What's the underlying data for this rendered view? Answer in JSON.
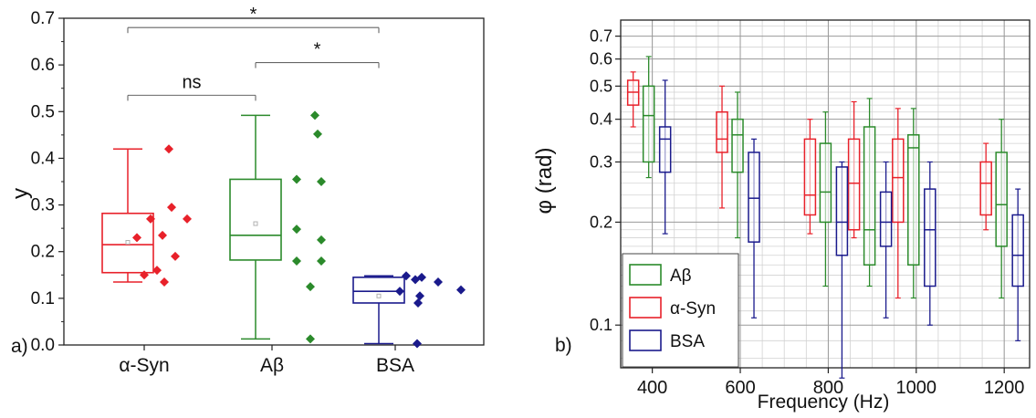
{
  "chart_data": [
    {
      "type": "box",
      "panel_label": "a)",
      "ylabel": "y",
      "ylim": [
        0,
        0.7
      ],
      "yticks": [
        "0.0",
        "0.1",
        "0.2",
        "0.3",
        "0.4",
        "0.5",
        "0.6",
        "0.7"
      ],
      "categories": [
        "α-Syn",
        "Aβ",
        "BSA"
      ],
      "colors": [
        "#e8212a",
        "#2b8a2b",
        "#1a1a8c"
      ],
      "boxes": [
        {
          "category": "α-Syn",
          "whisker_low": 0.135,
          "q1": 0.155,
          "median": 0.215,
          "q3": 0.282,
          "whisker_high": 0.42,
          "mean": 0.22
        },
        {
          "category": "Aβ",
          "whisker_low": 0.013,
          "q1": 0.182,
          "median": 0.235,
          "q3": 0.355,
          "whisker_high": 0.492,
          "mean": 0.26
        },
        {
          "category": "BSA",
          "whisker_low": 0.003,
          "q1": 0.09,
          "median": 0.115,
          "q3": 0.145,
          "whisker_high": 0.148,
          "mean": 0.105
        }
      ],
      "points": [
        {
          "category": "α-Syn",
          "values": [
            0.42,
            0.295,
            0.27,
            0.27,
            0.235,
            0.23,
            0.19,
            0.16,
            0.15,
            0.135
          ]
        },
        {
          "category": "Aβ",
          "values": [
            0.492,
            0.452,
            0.355,
            0.35,
            0.248,
            0.225,
            0.18,
            0.18,
            0.125,
            0.013
          ]
        },
        {
          "category": "BSA",
          "values": [
            0.148,
            0.145,
            0.14,
            0.135,
            0.115,
            0.118,
            0.105,
            0.09,
            0.003
          ]
        }
      ],
      "significance": [
        {
          "from": "α-Syn",
          "to": "Aβ",
          "label": "ns",
          "y": 0.535
        },
        {
          "from": "Aβ",
          "to": "BSA",
          "label": "*",
          "y": 0.605
        },
        {
          "from": "α-Syn",
          "to": "BSA",
          "label": "*",
          "y": 0.68
        }
      ]
    },
    {
      "type": "box",
      "panel_label": "b)",
      "xlabel": "Frequency (Hz)",
      "ylabel": "φ (rad)",
      "yscale": "log",
      "ylim": [
        0.075,
        0.78
      ],
      "yticks": [
        0.1,
        0.2,
        0.3,
        0.4,
        0.5,
        0.6,
        0.7
      ],
      "ytick_labels": [
        "0.1",
        "0.2",
        "0.3",
        "0.4",
        "0.5",
        "0.6",
        "0.7"
      ],
      "xticks": [
        400,
        600,
        800,
        1000,
        1200
      ],
      "xtick_labels": [
        "400",
        "600",
        "800",
        "1000",
        "1200"
      ],
      "frequencies": [
        380,
        600,
        800,
        900,
        1000,
        1200
      ],
      "legend": {
        "position": "bottom-left",
        "entries": [
          "Aβ",
          "α-Syn",
          "BSA"
        ]
      },
      "series": [
        {
          "name": "α-Syn",
          "color": "#e8212a",
          "boxes": [
            {
              "freq": 380,
              "whisker_low": 0.38,
              "q1": 0.44,
              "median": 0.48,
              "q3": 0.52,
              "whisker_high": 0.55
            },
            {
              "freq": 600,
              "whisker_low": 0.22,
              "q1": 0.32,
              "median": 0.35,
              "q3": 0.42,
              "whisker_high": 0.5
            },
            {
              "freq": 800,
              "whisker_low": 0.185,
              "q1": 0.21,
              "median": 0.24,
              "q3": 0.35,
              "whisker_high": 0.4
            },
            {
              "freq": 900,
              "whisker_low": 0.18,
              "q1": 0.19,
              "median": 0.26,
              "q3": 0.35,
              "whisker_high": 0.45
            },
            {
              "freq": 1000,
              "whisker_low": 0.12,
              "q1": 0.2,
              "median": 0.27,
              "q3": 0.35,
              "whisker_high": 0.43
            },
            {
              "freq": 1200,
              "whisker_low": 0.19,
              "q1": 0.21,
              "median": 0.26,
              "q3": 0.3,
              "whisker_high": 0.34
            }
          ]
        },
        {
          "name": "Aβ",
          "color": "#2b8a2b",
          "boxes": [
            {
              "freq": 380,
              "whisker_low": 0.27,
              "q1": 0.3,
              "median": 0.41,
              "q3": 0.5,
              "whisker_high": 0.61
            },
            {
              "freq": 600,
              "whisker_low": 0.18,
              "q1": 0.28,
              "median": 0.36,
              "q3": 0.4,
              "whisker_high": 0.48
            },
            {
              "freq": 800,
              "whisker_low": 0.13,
              "q1": 0.2,
              "median": 0.245,
              "q3": 0.34,
              "whisker_high": 0.42
            },
            {
              "freq": 900,
              "whisker_low": 0.13,
              "q1": 0.15,
              "median": 0.19,
              "q3": 0.38,
              "whisker_high": 0.46
            },
            {
              "freq": 1000,
              "whisker_low": 0.12,
              "q1": 0.15,
              "median": 0.33,
              "q3": 0.36,
              "whisker_high": 0.43
            },
            {
              "freq": 1200,
              "whisker_low": 0.12,
              "q1": 0.17,
              "median": 0.225,
              "q3": 0.32,
              "whisker_high": 0.4
            }
          ]
        },
        {
          "name": "BSA",
          "color": "#1a1a8c",
          "boxes": [
            {
              "freq": 380,
              "whisker_low": 0.185,
              "q1": 0.28,
              "median": 0.35,
              "q3": 0.38,
              "whisker_high": 0.52
            },
            {
              "freq": 600,
              "whisker_low": 0.105,
              "q1": 0.175,
              "median": 0.235,
              "q3": 0.32,
              "whisker_high": 0.35
            },
            {
              "freq": 800,
              "whisker_low": 0.07,
              "q1": 0.16,
              "median": 0.2,
              "q3": 0.29,
              "whisker_high": 0.3
            },
            {
              "freq": 900,
              "whisker_low": 0.105,
              "q1": 0.17,
              "median": 0.2,
              "q3": 0.245,
              "whisker_high": 0.3
            },
            {
              "freq": 1000,
              "whisker_low": 0.1,
              "q1": 0.13,
              "median": 0.19,
              "q3": 0.25,
              "whisker_high": 0.3
            },
            {
              "freq": 1200,
              "whisker_low": 0.09,
              "q1": 0.13,
              "median": 0.16,
              "q3": 0.21,
              "whisker_high": 0.25
            }
          ]
        }
      ]
    }
  ]
}
